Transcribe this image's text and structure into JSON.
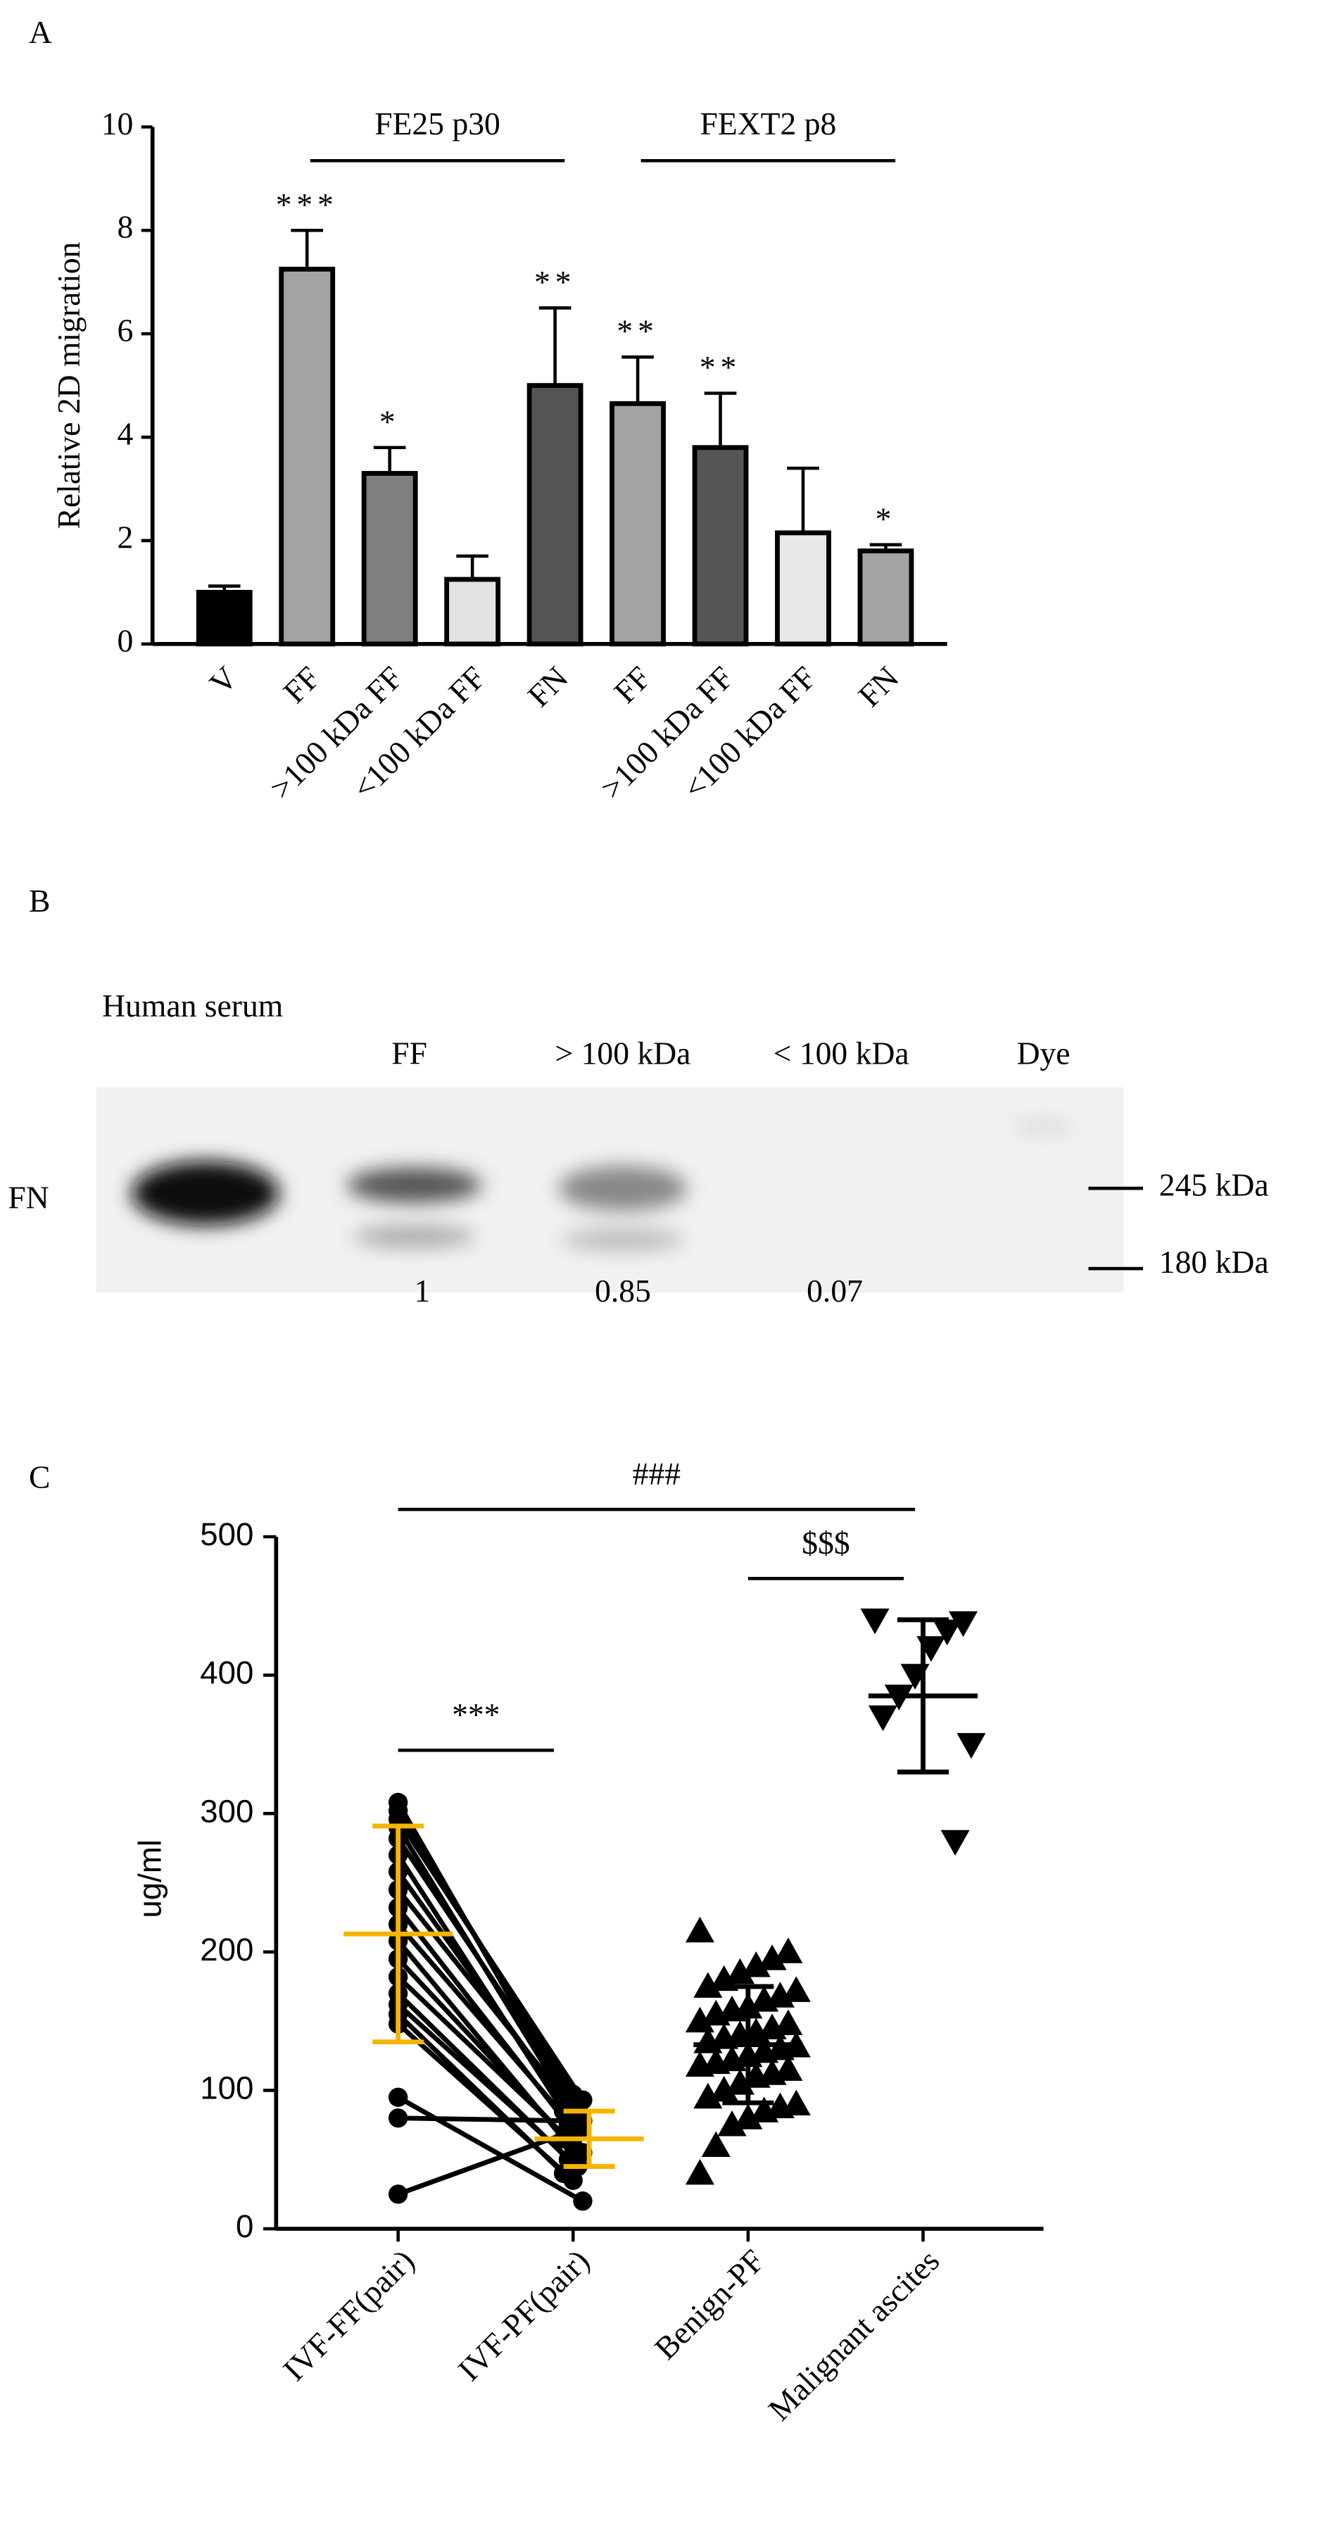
{
  "chart_data": [
    {
      "type": "bar",
      "panel_label": "A",
      "ylabel": "Relative 2D migration",
      "categories": [
        "V",
        "FF",
        ">100 kDa FF",
        "<100 kDa FF",
        "FN",
        "FF",
        ">100 kDa FF",
        "<100 kDa FF",
        "FN"
      ],
      "values": [
        1.0,
        7.25,
        3.3,
        1.25,
        5.0,
        4.65,
        3.8,
        2.15,
        1.8
      ],
      "errors": [
        0.12,
        0.75,
        0.5,
        0.45,
        1.5,
        0.9,
        1.05,
        1.25,
        0.12
      ],
      "colors": [
        "#000000",
        "#a3a3a3",
        "#7f7f7f",
        "#e3e3e3",
        "#555555",
        "#a3a3a3",
        "#555555",
        "#e8e8e8",
        "#a3a3a3"
      ],
      "significance": [
        null,
        "***",
        "*",
        null,
        "**",
        "**",
        "**",
        null,
        "*"
      ],
      "groups": [
        {
          "label": "FE25 p30",
          "from": 1,
          "to": 4
        },
        {
          "label": "FEXT2 p8",
          "from": 5,
          "to": 8
        }
      ],
      "ylim": [
        0,
        10
      ],
      "yticks": [
        0,
        2,
        4,
        6,
        8,
        10
      ]
    },
    {
      "type": "paired-scatter",
      "panel_label": "C",
      "ylabel": "ug/ml",
      "categories": [
        "IVF-FF(pair)",
        "IVF-PF(pair)",
        "Benign-PF",
        "Malignant ascites"
      ],
      "paired": [
        0,
        1
      ],
      "series": [
        {
          "marker": "circle",
          "color": "#000000",
          "summary_color": "#f5b400",
          "mean": 213,
          "sd": 78,
          "values": [
            308,
            302,
            296,
            290,
            282,
            270,
            258,
            245,
            232,
            220,
            208,
            195,
            182,
            170,
            162,
            155,
            148,
            95,
            80,
            25
          ]
        },
        {
          "marker": "circle",
          "color": "#000000",
          "summary_color": "#f5b400",
          "mean": 65,
          "sd": 20,
          "values": [
            100,
            97,
            93,
            90,
            88,
            85,
            82,
            78,
            75,
            70,
            65,
            60,
            55,
            50,
            45,
            40,
            35,
            20,
            78,
            72
          ]
        },
        {
          "marker": "triangle-up",
          "color": "#000000",
          "summary_color": "#000000",
          "mean": 133,
          "sd": 42,
          "values": [
            215,
            200,
            195,
            190,
            185,
            180,
            175,
            172,
            168,
            165,
            160,
            158,
            155,
            150,
            148,
            145,
            142,
            140,
            138,
            135,
            132,
            130,
            128,
            125,
            122,
            120,
            118,
            115,
            112,
            110,
            105,
            100,
            95,
            90,
            88,
            85,
            80,
            75,
            60,
            40
          ]
        },
        {
          "marker": "triangle-down",
          "color": "#000000",
          "summary_color": "#000000",
          "mean": 385,
          "sd": 55,
          "values": [
            440,
            438,
            432,
            420,
            400,
            385,
            370,
            350,
            280
          ]
        }
      ],
      "brackets": [
        {
          "label": "###",
          "from": 0,
          "to": 3
        },
        {
          "label": "$$$",
          "from": 2,
          "to": 3
        },
        {
          "label": "***",
          "from": 0,
          "to": 1
        }
      ],
      "ylim": [
        0,
        500
      ],
      "yticks": [
        0,
        100,
        200,
        300,
        400,
        500
      ]
    }
  ],
  "panel_b": {
    "label": "B",
    "lanes": [
      "Human serum",
      "FF",
      "> 100 kDa",
      "< 100 kDa",
      "Dye"
    ],
    "row_label": "FN",
    "markers": [
      "245 kDa",
      "180 kDa"
    ],
    "quantification": [
      1,
      0.85,
      0.07
    ]
  }
}
